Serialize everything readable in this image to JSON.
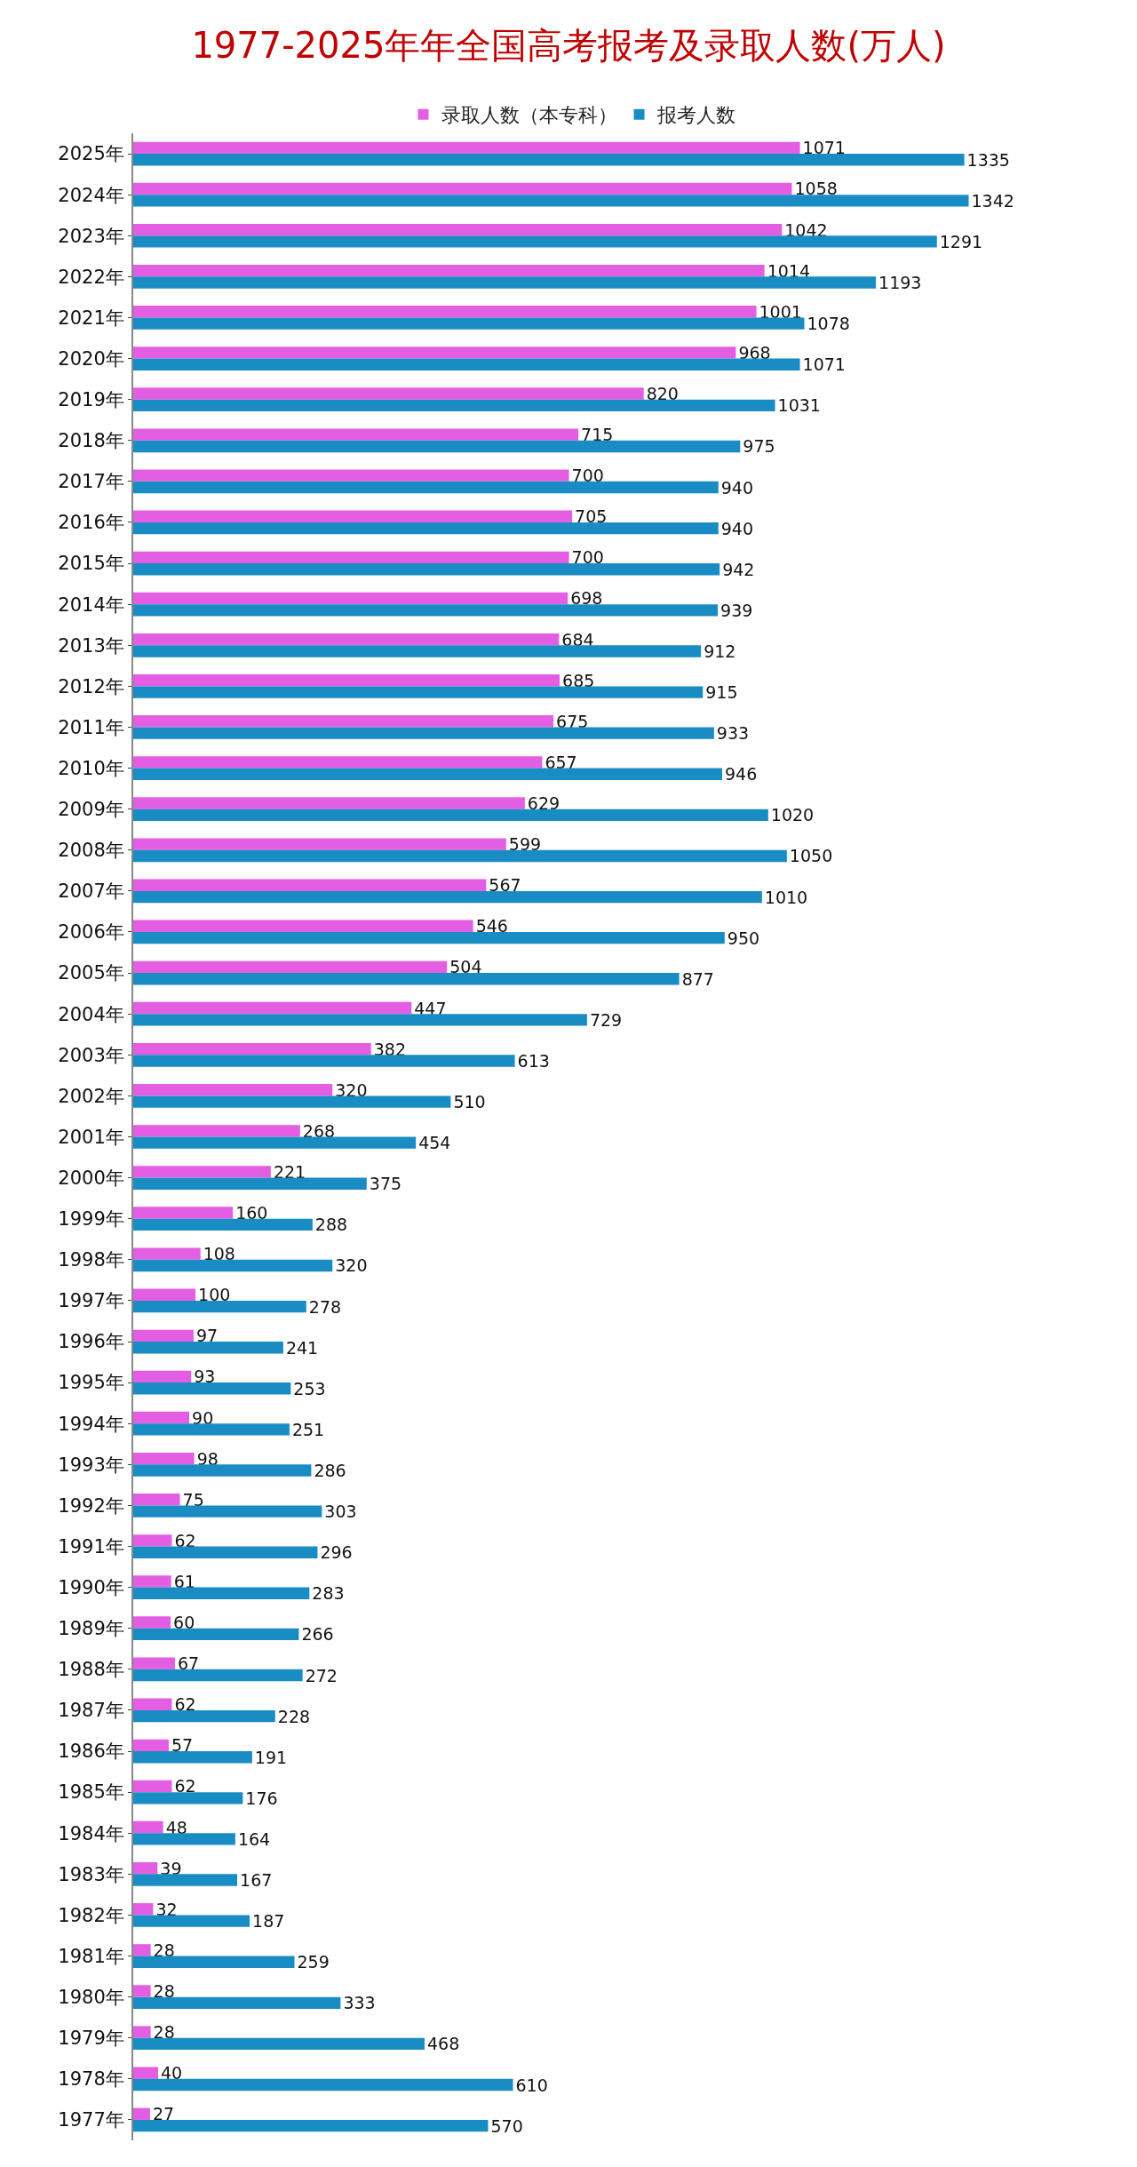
{
  "chart_data": {
    "type": "bar",
    "orientation": "horizontal",
    "title": "1977-2025年年全国高考报考及录取人数(万人)",
    "legend": "top",
    "data_labels": true,
    "categories": [
      "2025年",
      "2024年",
      "2023年",
      "2022年",
      "2021年",
      "2020年",
      "2019年",
      "2018年",
      "2017年",
      "2016年",
      "2015年",
      "2014年",
      "2013年",
      "2012年",
      "2011年",
      "2010年",
      "2009年",
      "2008年",
      "2007年",
      "2006年",
      "2005年",
      "2004年",
      "2003年",
      "2002年",
      "2001年",
      "2000年",
      "1999年",
      "1998年",
      "1997年",
      "1996年",
      "1995年",
      "1994年",
      "1993年",
      "1992年",
      "1991年",
      "1990年",
      "1989年",
      "1988年",
      "1987年",
      "1986年",
      "1985年",
      "1984年",
      "1983年",
      "1982年",
      "1981年",
      "1980年",
      "1979年",
      "1978年",
      "1977年"
    ],
    "series": [
      {
        "name": "录取人数（本专科）",
        "color": "#e35ee3",
        "values": [
          1071,
          1058,
          1042,
          1014,
          1001,
          968,
          820,
          715,
          700,
          705,
          700,
          698,
          684,
          685,
          675,
          657,
          629,
          599,
          567,
          546,
          504,
          447,
          382,
          320,
          268,
          221,
          160,
          108,
          100,
          97,
          93,
          90,
          98,
          75,
          62,
          61,
          60,
          67,
          62,
          57,
          62,
          48,
          39,
          32,
          28,
          28,
          28,
          40,
          27
        ]
      },
      {
        "name": "报考人数",
        "color": "#1a8cc4",
        "values": [
          1335,
          1342,
          1291,
          1193,
          1078,
          1071,
          1031,
          975,
          940,
          940,
          942,
          939,
          912,
          915,
          933,
          946,
          1020,
          1050,
          1010,
          950,
          877,
          729,
          613,
          510,
          454,
          375,
          288,
          320,
          278,
          241,
          253,
          251,
          286,
          303,
          296,
          283,
          266,
          272,
          228,
          191,
          176,
          164,
          167,
          187,
          259,
          333,
          468,
          610,
          570
        ]
      }
    ]
  }
}
